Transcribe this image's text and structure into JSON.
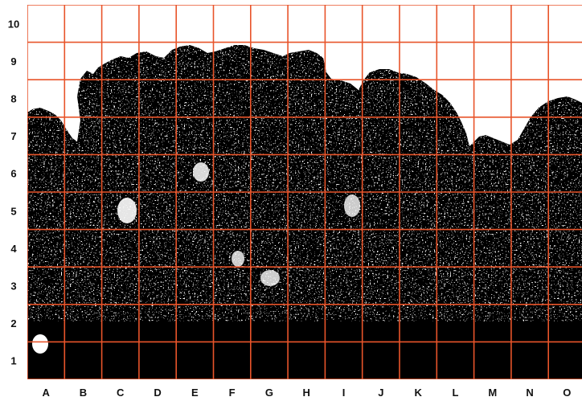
{
  "figure": {
    "columns": [
      "A",
      "B",
      "C",
      "D",
      "E",
      "F",
      "G",
      "H",
      "I",
      "J",
      "K",
      "L",
      "M",
      "N",
      "O"
    ],
    "rows": [
      "10",
      "9",
      "8",
      "7",
      "6",
      "5",
      "4",
      "3",
      "2",
      "1"
    ],
    "grid_color": "#e8542a",
    "silhouette_color": "#000000",
    "background_color": "#ffffff",
    "subject": "tree-canopy-silhouette"
  }
}
